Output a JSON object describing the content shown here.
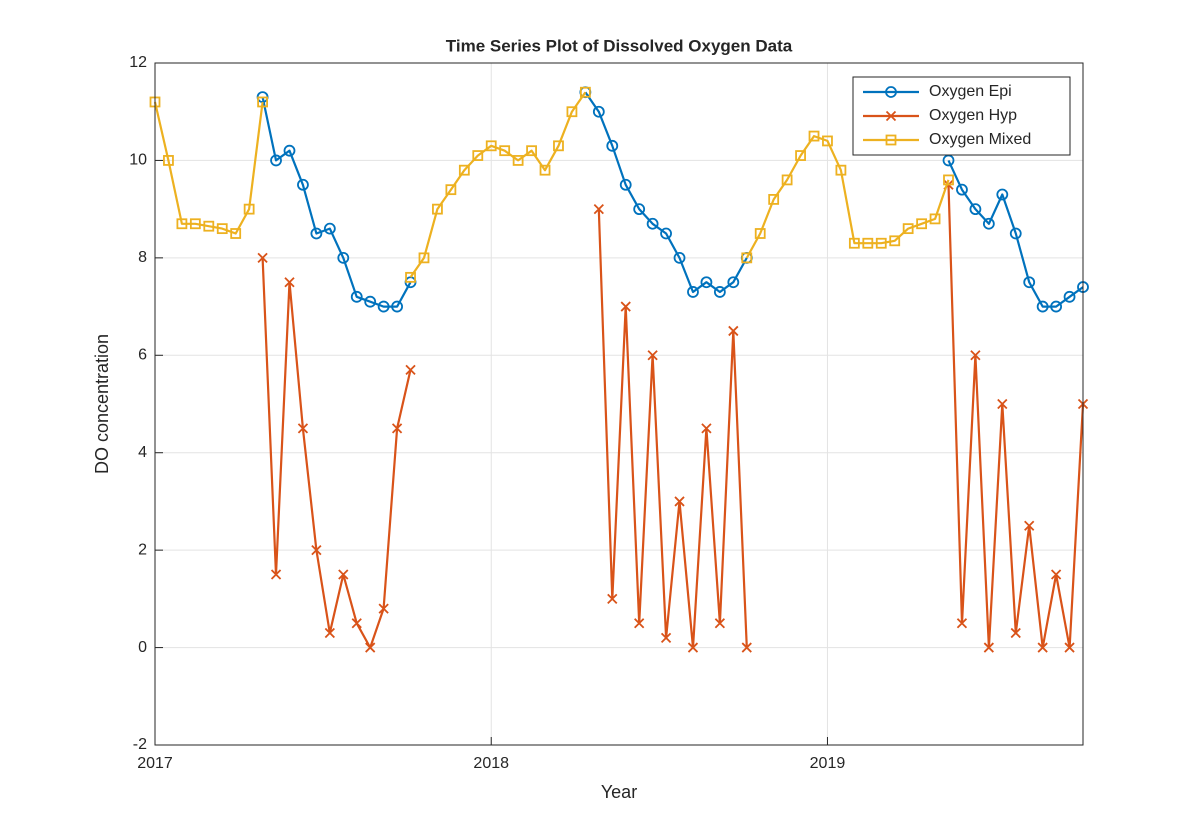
{
  "chart_data": {
    "type": "line",
    "title": "Time Series Plot of Dissolved Oxygen Data",
    "xlabel": "Year",
    "ylabel": "DO concentration",
    "x": [
      2017.0,
      2017.04,
      2017.08,
      2017.12,
      2017.16,
      2017.2,
      2017.24,
      2017.28,
      2017.32,
      2017.36,
      2017.4,
      2017.44,
      2017.48,
      2017.52,
      2017.56,
      2017.6,
      2017.64,
      2017.68,
      2017.72,
      2017.76,
      2017.8,
      2017.84,
      2017.88,
      2017.92,
      2017.96,
      2018.0,
      2018.04,
      2018.08,
      2018.12,
      2018.16,
      2018.2,
      2018.24,
      2018.28,
      2018.32,
      2018.36,
      2018.4,
      2018.44,
      2018.48,
      2018.52,
      2018.56,
      2018.6,
      2018.64,
      2018.68,
      2018.72,
      2018.76,
      2018.8,
      2018.84,
      2018.88,
      2018.92,
      2018.96,
      2019.0,
      2019.04,
      2019.08,
      2019.12,
      2019.16,
      2019.2,
      2019.24,
      2019.28,
      2019.32,
      2019.36,
      2019.4,
      2019.44,
      2019.48,
      2019.52,
      2019.56,
      2019.6,
      2019.64,
      2019.68,
      2019.72,
      2019.76
    ],
    "series": [
      {
        "name": "Oxygen Epi",
        "color": "#0072BD",
        "marker": "circle",
        "values": [
          null,
          null,
          null,
          null,
          null,
          null,
          null,
          null,
          11.3,
          10.0,
          10.2,
          9.5,
          8.5,
          8.6,
          8.0,
          7.2,
          7.1,
          7.0,
          7.0,
          7.5,
          null,
          null,
          null,
          null,
          null,
          null,
          null,
          null,
          null,
          null,
          null,
          null,
          11.4,
          11.0,
          10.3,
          9.5,
          9.0,
          8.7,
          8.5,
          8.0,
          7.3,
          7.5,
          7.3,
          7.5,
          8.0,
          null,
          null,
          null,
          null,
          null,
          null,
          null,
          null,
          null,
          null,
          null,
          null,
          null,
          null,
          10.0,
          9.4,
          9.0,
          8.7,
          9.3,
          8.5,
          7.5,
          7.0,
          7.0,
          7.2,
          7.4
        ]
      },
      {
        "name": "Oxygen Hyp",
        "color": "#D95319",
        "marker": "x",
        "values": [
          null,
          null,
          null,
          null,
          null,
          null,
          null,
          null,
          8.0,
          1.5,
          7.5,
          4.5,
          2.0,
          0.3,
          1.5,
          0.5,
          0.0,
          0.8,
          4.5,
          5.7,
          null,
          null,
          null,
          null,
          null,
          null,
          null,
          null,
          null,
          null,
          null,
          null,
          null,
          9.0,
          1.0,
          7.0,
          0.5,
          6.0,
          0.2,
          3.0,
          0.0,
          4.5,
          0.5,
          6.5,
          0.0,
          null,
          null,
          null,
          null,
          null,
          null,
          null,
          null,
          null,
          null,
          null,
          null,
          null,
          null,
          9.5,
          0.5,
          6.0,
          0.0,
          5.0,
          0.3,
          2.5,
          0.0,
          1.5,
          0.0,
          5.0
        ]
      },
      {
        "name": "Oxygen Mixed",
        "color": "#EDB120",
        "marker": "square",
        "values": [
          11.2,
          10.0,
          8.7,
          8.7,
          8.65,
          8.6,
          8.5,
          9.0,
          11.2,
          null,
          null,
          null,
          null,
          null,
          null,
          null,
          null,
          null,
          null,
          7.6,
          8.0,
          9.0,
          9.4,
          9.8,
          10.1,
          10.3,
          10.2,
          10.0,
          10.2,
          9.8,
          10.3,
          11.0,
          11.4,
          null,
          null,
          null,
          null,
          null,
          null,
          null,
          null,
          null,
          null,
          null,
          8.0,
          8.5,
          9.2,
          9.6,
          10.1,
          10.5,
          10.4,
          9.8,
          8.3,
          8.3,
          8.3,
          8.35,
          8.6,
          8.7,
          8.8,
          9.6,
          null,
          null,
          null,
          null,
          null,
          null,
          null,
          null,
          null,
          null
        ]
      }
    ],
    "xlim": [
      2017,
      2019.76
    ],
    "xticks": [
      2017,
      2018,
      2019
    ],
    "ylim": [
      -2,
      12
    ],
    "yticks": [
      -2,
      0,
      2,
      4,
      6,
      8,
      10,
      12
    ],
    "grid": true,
    "legend": "northeast"
  }
}
